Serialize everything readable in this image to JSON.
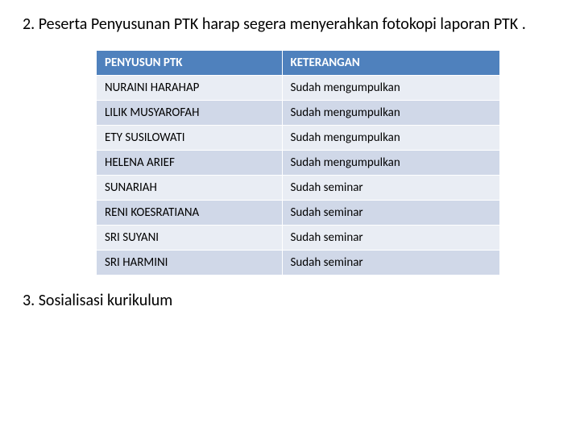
{
  "heading": "2. Peserta Penyusunan PTK harap segera menyerahkan fotokopi laporan PTK .",
  "footer": "3. Sosialisasi kurikulum",
  "table": {
    "columns": [
      "PENYUSUN PTK",
      "KETERANGAN"
    ],
    "col_widths": [
      "46%",
      "54%"
    ],
    "header_bg": "#4f81bd",
    "header_color": "#ffffff",
    "header_border": "#ffffff",
    "row_bg_odd": "#e9edf4",
    "row_bg_even": "#d0d8e8",
    "row_border": "#ffffff",
    "cell_color": "#000000",
    "font_size_header": 15,
    "font_size_cell": 15,
    "rows": [
      [
        "NURAINI HARAHAP",
        "Sudah mengumpulkan"
      ],
      [
        "LILIK MUSYAROFAH",
        "Sudah mengumpulkan"
      ],
      [
        "ETY SUSILOWATI",
        "Sudah mengumpulkan"
      ],
      [
        "HELENA ARIEF",
        "Sudah mengumpulkan"
      ],
      [
        "SUNARIAH",
        "Sudah seminar"
      ],
      [
        "RENI KOESRATIANA",
        "Sudah seminar"
      ],
      [
        "SRI SUYANI",
        "Sudah seminar"
      ],
      [
        "SRI HARMINI",
        "Sudah seminar"
      ]
    ]
  }
}
